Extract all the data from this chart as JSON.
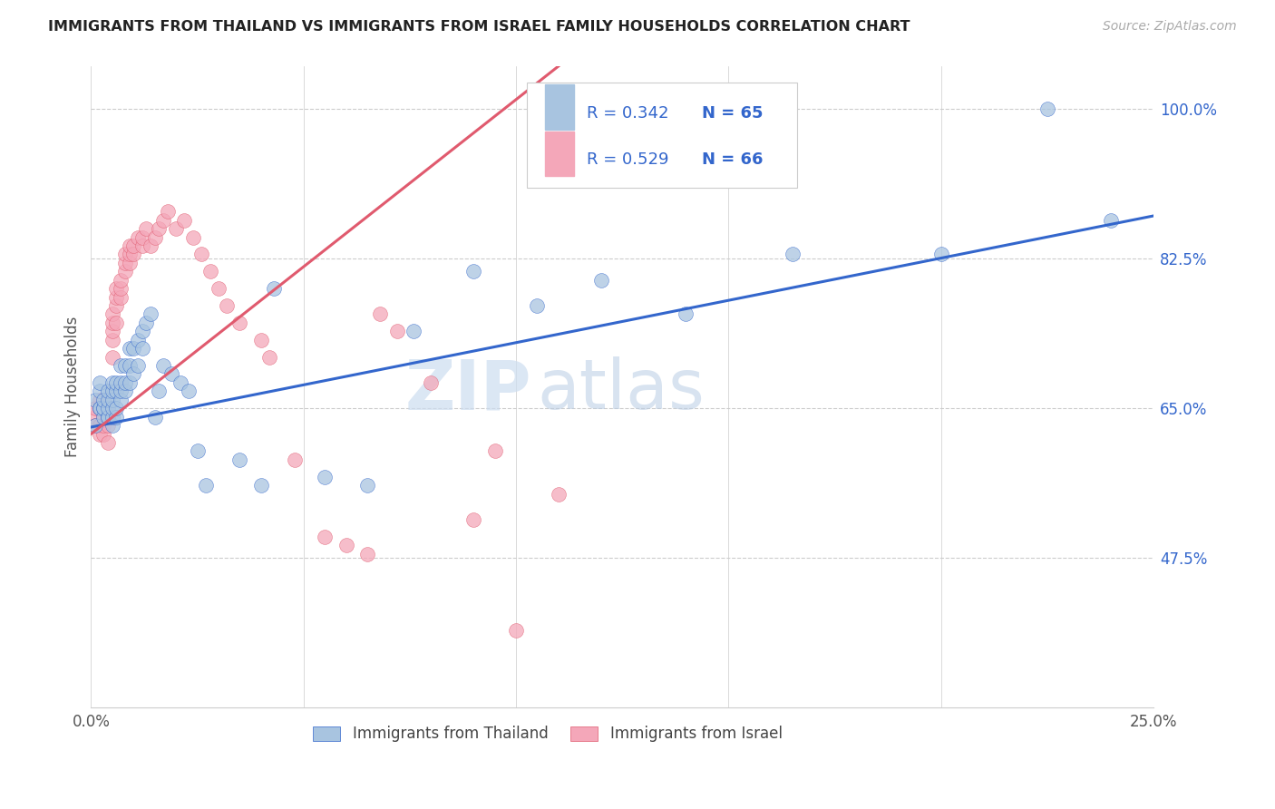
{
  "title": "IMMIGRANTS FROM THAILAND VS IMMIGRANTS FROM ISRAEL FAMILY HOUSEHOLDS CORRELATION CHART",
  "source": "Source: ZipAtlas.com",
  "ylabel": "Family Households",
  "color_thailand": "#a8c4e0",
  "color_israel": "#f4a7b9",
  "color_line_thailand": "#3366cc",
  "color_line_israel": "#e05a6e",
  "watermark_zip": "ZIP",
  "watermark_atlas": "atlas",
  "legend_entries": [
    {
      "r": "0.342",
      "n": "65",
      "color_sq": "#a8c4e0",
      "color_text": "#3366cc"
    },
    {
      "r": "0.529",
      "n": "66",
      "color_sq": "#f4a7b9",
      "color_text": "#3366cc"
    }
  ],
  "xlim": [
    0.0,
    0.25
  ],
  "ylim": [
    0.3,
    1.05
  ],
  "yticks": [
    0.475,
    0.65,
    0.825,
    1.0
  ],
  "ytick_labels": [
    "47.5%",
    "65.0%",
    "82.5%",
    "100.0%"
  ],
  "xticks": [
    0.0,
    0.05,
    0.1,
    0.15,
    0.2,
    0.25
  ],
  "xtick_labels_show": [
    "0.0%",
    "",
    "",
    "",
    "",
    "25.0%"
  ],
  "th_line_x0": 0.0,
  "th_line_y0": 0.628,
  "th_line_x1": 0.25,
  "th_line_y1": 0.875,
  "is_line_x0": 0.0,
  "is_line_y0": 0.62,
  "is_line_x1": 0.11,
  "is_line_y1": 1.05,
  "th_points_x": [
    0.001,
    0.001,
    0.002,
    0.002,
    0.002,
    0.002,
    0.003,
    0.003,
    0.003,
    0.003,
    0.004,
    0.004,
    0.004,
    0.004,
    0.004,
    0.005,
    0.005,
    0.005,
    0.005,
    0.005,
    0.005,
    0.006,
    0.006,
    0.006,
    0.006,
    0.007,
    0.007,
    0.007,
    0.007,
    0.008,
    0.008,
    0.008,
    0.009,
    0.009,
    0.009,
    0.01,
    0.01,
    0.011,
    0.011,
    0.012,
    0.012,
    0.013,
    0.014,
    0.015,
    0.016,
    0.017,
    0.019,
    0.021,
    0.023,
    0.025,
    0.027,
    0.035,
    0.04,
    0.043,
    0.055,
    0.065,
    0.076,
    0.09,
    0.105,
    0.12,
    0.14,
    0.165,
    0.2,
    0.225,
    0.24
  ],
  "th_points_y": [
    0.63,
    0.66,
    0.65,
    0.65,
    0.67,
    0.68,
    0.64,
    0.65,
    0.65,
    0.66,
    0.64,
    0.64,
    0.65,
    0.66,
    0.67,
    0.63,
    0.64,
    0.65,
    0.66,
    0.67,
    0.68,
    0.64,
    0.65,
    0.67,
    0.68,
    0.66,
    0.67,
    0.68,
    0.7,
    0.67,
    0.68,
    0.7,
    0.68,
    0.7,
    0.72,
    0.69,
    0.72,
    0.7,
    0.73,
    0.72,
    0.74,
    0.75,
    0.76,
    0.64,
    0.67,
    0.7,
    0.69,
    0.68,
    0.67,
    0.6,
    0.56,
    0.59,
    0.56,
    0.79,
    0.57,
    0.56,
    0.74,
    0.81,
    0.77,
    0.8,
    0.76,
    0.83,
    0.83,
    1.0,
    0.87
  ],
  "is_points_x": [
    0.001,
    0.001,
    0.001,
    0.002,
    0.002,
    0.002,
    0.002,
    0.003,
    0.003,
    0.003,
    0.003,
    0.003,
    0.004,
    0.004,
    0.004,
    0.004,
    0.005,
    0.005,
    0.005,
    0.005,
    0.005,
    0.006,
    0.006,
    0.006,
    0.006,
    0.007,
    0.007,
    0.007,
    0.008,
    0.008,
    0.008,
    0.009,
    0.009,
    0.009,
    0.01,
    0.01,
    0.011,
    0.012,
    0.012,
    0.013,
    0.014,
    0.015,
    0.016,
    0.017,
    0.018,
    0.02,
    0.022,
    0.024,
    0.026,
    0.028,
    0.03,
    0.032,
    0.035,
    0.04,
    0.042,
    0.048,
    0.055,
    0.06,
    0.065,
    0.068,
    0.072,
    0.08,
    0.09,
    0.095,
    0.1,
    0.11
  ],
  "is_points_y": [
    0.64,
    0.65,
    0.63,
    0.62,
    0.63,
    0.65,
    0.66,
    0.62,
    0.63,
    0.64,
    0.65,
    0.66,
    0.61,
    0.63,
    0.64,
    0.65,
    0.71,
    0.73,
    0.74,
    0.75,
    0.76,
    0.75,
    0.77,
    0.78,
    0.79,
    0.78,
    0.79,
    0.8,
    0.81,
    0.82,
    0.83,
    0.82,
    0.83,
    0.84,
    0.83,
    0.84,
    0.85,
    0.84,
    0.85,
    0.86,
    0.84,
    0.85,
    0.86,
    0.87,
    0.88,
    0.86,
    0.87,
    0.85,
    0.83,
    0.81,
    0.79,
    0.77,
    0.75,
    0.73,
    0.71,
    0.59,
    0.5,
    0.49,
    0.48,
    0.76,
    0.74,
    0.68,
    0.52,
    0.6,
    0.39,
    0.55
  ]
}
